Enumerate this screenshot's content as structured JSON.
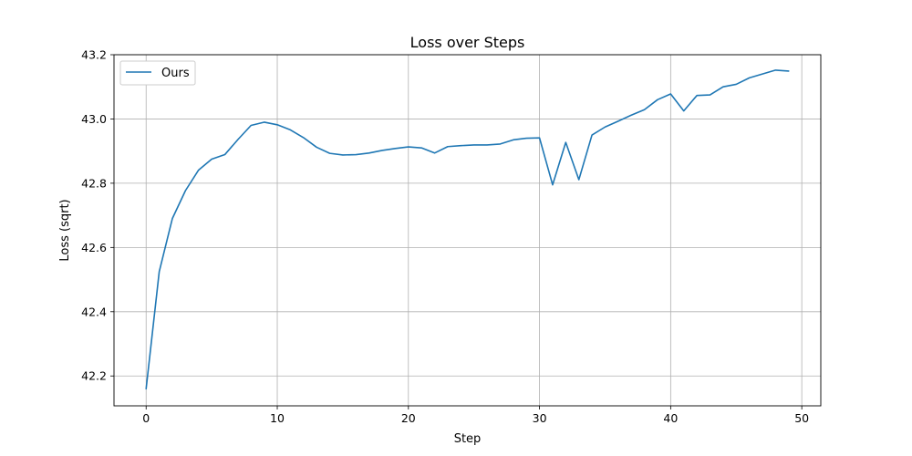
{
  "chart_data": {
    "type": "line",
    "title": "Loss over Steps",
    "xlabel": "Step",
    "ylabel": "Loss (sqrt)",
    "xlim": [
      -2.45,
      51.45
    ],
    "ylim": [
      42.107,
      43.2
    ],
    "xticks": [
      0,
      10,
      20,
      30,
      40,
      50
    ],
    "yticks": [
      42.2,
      42.4,
      42.6,
      42.8,
      43.0,
      43.2
    ],
    "xtick_labels": [
      "0",
      "10",
      "20",
      "30",
      "40",
      "50"
    ],
    "ytick_labels": [
      "42.2",
      "42.4",
      "42.6",
      "42.8",
      "43.0",
      "43.2"
    ],
    "grid": true,
    "legend_position": "top-left",
    "series": [
      {
        "name": "Ours",
        "color": "#1f77b4",
        "x": [
          0,
          1,
          2,
          3,
          4,
          5,
          6,
          7,
          8,
          9,
          10,
          11,
          12,
          13,
          14,
          15,
          16,
          17,
          18,
          19,
          20,
          21,
          22,
          23,
          24,
          25,
          26,
          27,
          28,
          29,
          30,
          31,
          32,
          33,
          34,
          35,
          36,
          37,
          38,
          39,
          40,
          41,
          42,
          43,
          44,
          45,
          46,
          47,
          48,
          49
        ],
        "values": [
          42.16,
          42.525,
          42.69,
          42.777,
          42.841,
          42.875,
          42.889,
          42.936,
          42.98,
          42.99,
          42.982,
          42.966,
          42.942,
          42.912,
          42.893,
          42.888,
          42.889,
          42.894,
          42.902,
          42.908,
          42.913,
          42.91,
          42.894,
          42.914,
          42.917,
          42.919,
          42.919,
          42.922,
          42.935,
          42.94,
          42.941,
          42.795,
          42.927,
          42.811,
          42.95,
          42.975,
          42.993,
          43.012,
          43.029,
          43.06,
          43.078,
          43.025,
          43.073,
          43.075,
          43.1,
          43.108,
          43.128,
          43.14,
          43.152,
          43.149
        ]
      }
    ]
  }
}
